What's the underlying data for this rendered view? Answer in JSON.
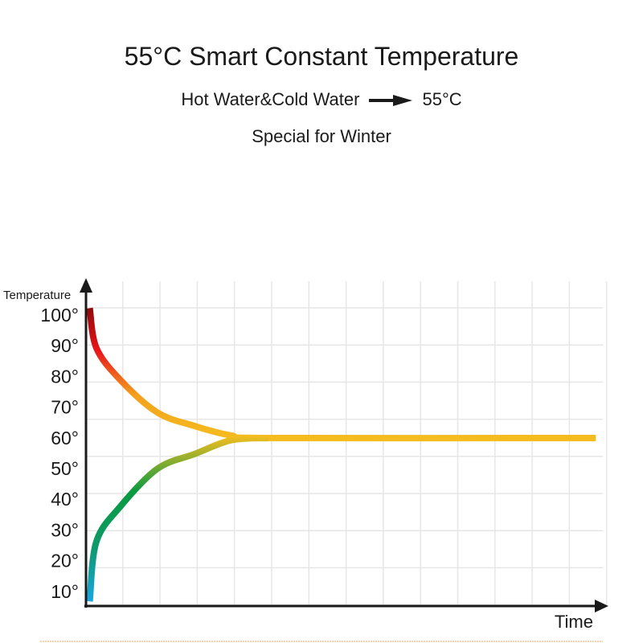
{
  "header": {
    "title": "55°C Smart Constant Temperature",
    "line_left": "Hot Water&Cold Water",
    "line_right": "55°C",
    "arrow_icon": "right-arrow",
    "subtitle": "Special for Winter"
  },
  "chart_data": {
    "type": "line",
    "title": "",
    "xlabel": "Time",
    "ylabel": "Temperature",
    "y_ticks": [
      "100°",
      "90°",
      "80°",
      "70°",
      "60°",
      "50°",
      "40°",
      "30°",
      "20°",
      "10°"
    ],
    "x_ticks": [],
    "grid": true,
    "series": [
      {
        "x": [
          0.1,
          0.28,
          0.93,
          1.92,
          2.92,
          3.91,
          4.9,
          13.7
        ],
        "y": [
          102,
          89,
          78.5,
          68,
          63.6,
          60.5,
          59.7,
          59.7
        ],
        "colors": [
          "#8b0a0a",
          "#e8141b",
          "#f4a11c",
          "#f5bd1f"
        ]
      },
      {
        "x": [
          0.1,
          0.28,
          0.93,
          1.92,
          2.92,
          3.91,
          4.9
        ],
        "y": [
          6.5,
          26,
          37.5,
          49.7,
          54.5,
          59,
          59.7
        ],
        "colors": [
          "#1aa6e4",
          "#0e9a6a",
          "#0a9a40",
          "#f5bd1f"
        ]
      }
    ],
    "line_color": "#f5bf1f"
  }
}
